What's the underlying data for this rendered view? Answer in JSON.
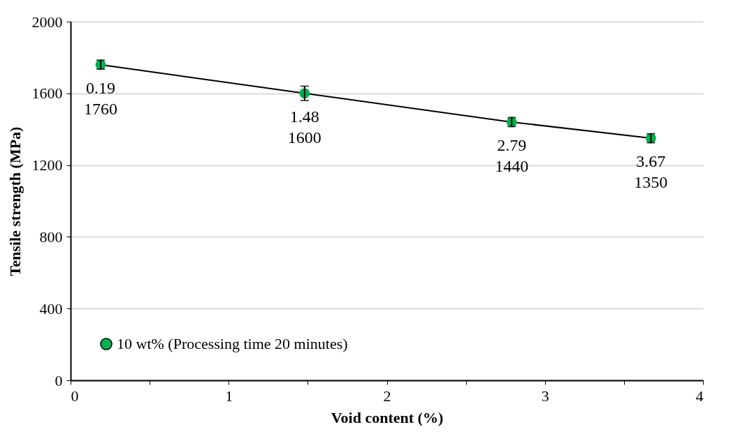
{
  "chart_data": {
    "type": "line",
    "xlabel": "Void content (%)",
    "ylabel": "Tensile strength (MPa)",
    "x": [
      0.19,
      1.48,
      2.79,
      3.67
    ],
    "series": [
      {
        "name": "10 wt% (Processing time 20 minutes)",
        "color": "#00b050",
        "values": [
          1760,
          1600,
          1440,
          1350
        ],
        "errors": [
          25,
          40,
          25,
          25
        ],
        "value_labels": [
          "0.19\n1760",
          "1.48\n1600",
          "2.79\n1440",
          "3.67\n1350"
        ]
      }
    ],
    "xlim": [
      0,
      4
    ],
    "xticks": [
      0,
      {
        "value": 0.5,
        "label": null
      },
      1,
      {
        "value": 1.5,
        "label": null
      },
      2,
      {
        "value": 2.5,
        "label": null
      },
      3,
      {
        "value": 3.5,
        "label": null
      },
      4
    ],
    "ylim": [
      0,
      2000
    ],
    "yticks": [
      0,
      400,
      800,
      1200,
      1600,
      2000
    ],
    "grid": "y",
    "legend": "bottom left",
    "marker": "circle",
    "line_style": "solid"
  }
}
